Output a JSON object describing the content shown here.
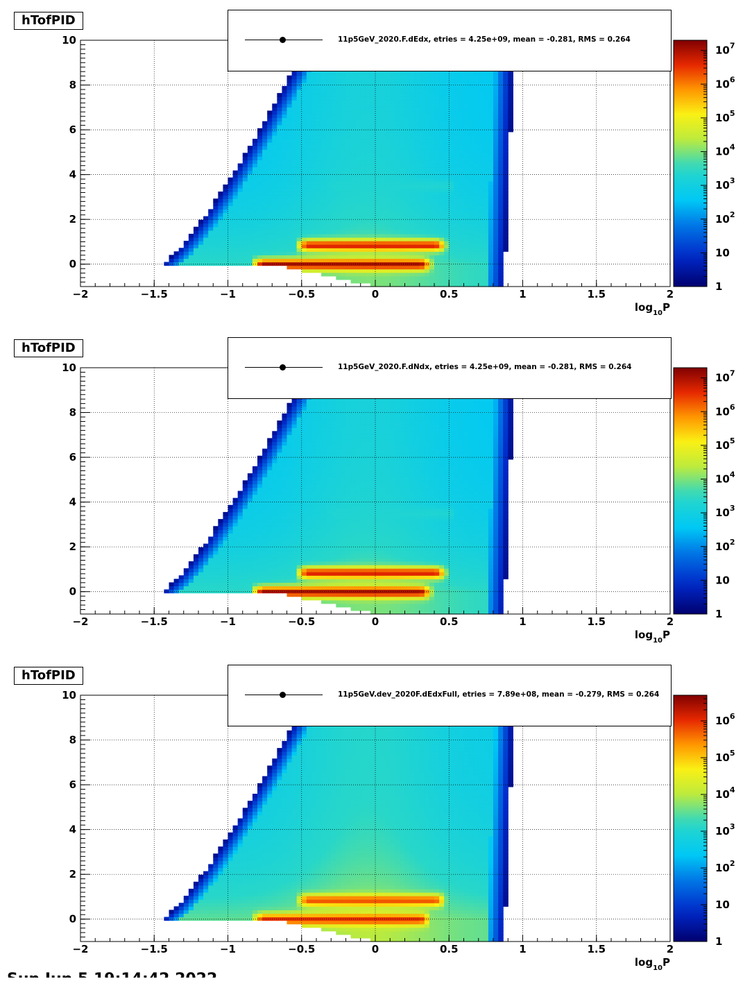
{
  "panels": [
    {
      "title": "hTofPID",
      "legend": "11p5GeV_2020.F.dEdx, etries =   4.25e+09, mean =  -0.281, RMS =   0.264",
      "z_labels": [
        {
          "base": "10",
          "exp": "7"
        },
        {
          "base": "10",
          "exp": "6"
        },
        {
          "base": "10",
          "exp": "5"
        },
        {
          "base": "10",
          "exp": "4"
        },
        {
          "base": "10",
          "exp": "3"
        },
        {
          "base": "10",
          "exp": "2"
        },
        {
          "base": "10",
          "exp": ""
        },
        {
          "base": "1",
          "exp": ""
        }
      ]
    },
    {
      "title": "hTofPID",
      "legend": "11p5GeV_2020.F.dNdx, etries =   4.25e+09, mean =  -0.281, RMS =   0.264",
      "z_labels": [
        {
          "base": "10",
          "exp": "7"
        },
        {
          "base": "10",
          "exp": "6"
        },
        {
          "base": "10",
          "exp": "5"
        },
        {
          "base": "10",
          "exp": "4"
        },
        {
          "base": "10",
          "exp": "3"
        },
        {
          "base": "10",
          "exp": "2"
        },
        {
          "base": "10",
          "exp": ""
        },
        {
          "base": "1",
          "exp": ""
        }
      ]
    },
    {
      "title": "hTofPID",
      "legend": "11p5GeV.dev_2020F.dEdxFull, etries =   7.89e+08, mean =  -0.279, RMS =   0.264",
      "z_labels": [
        {
          "base": "10",
          "exp": "6"
        },
        {
          "base": "10",
          "exp": "5"
        },
        {
          "base": "10",
          "exp": "4"
        },
        {
          "base": "10",
          "exp": "3"
        },
        {
          "base": "10",
          "exp": "2"
        },
        {
          "base": "10",
          "exp": ""
        },
        {
          "base": "1",
          "exp": ""
        }
      ]
    }
  ],
  "footer": "Sun Jun  5 19:14:42 2022",
  "chart_data": [
    {
      "type": "heatmap",
      "title": "hTofPID",
      "xlabel": "log10P",
      "ylabel": "",
      "xlim": [
        -2,
        2
      ],
      "ylim": [
        -1,
        10
      ],
      "x_ticks": [
        "-2",
        "-1.5",
        "-1",
        "-0.5",
        "0",
        "0.5",
        "1",
        "1.5",
        "2"
      ],
      "y_ticks": [
        "0",
        "2",
        "4",
        "6",
        "8",
        "10"
      ],
      "z_scale": "log",
      "zlim": [
        1,
        20000000
      ],
      "grid": true,
      "legend_position": "top-right",
      "series": [
        {
          "name": "11p5GeV_2020.F.dEdx",
          "entries": "4.25e+09",
          "mean": -0.281,
          "rms": 0.264
        }
      ],
      "bands": [
        {
          "y": 0.0,
          "x_range": [
            -0.75,
            0.3
          ],
          "level": 7
        },
        {
          "y": 0.85,
          "x_range": [
            -0.45,
            0.4
          ],
          "level": 6.7
        },
        {
          "y": 3.5,
          "x_range": [
            -0.3,
            0.5
          ],
          "level": 3.3
        }
      ]
    },
    {
      "type": "heatmap",
      "title": "hTofPID",
      "xlabel": "log10P",
      "ylabel": "",
      "xlim": [
        -2,
        2
      ],
      "ylim": [
        -1,
        10
      ],
      "x_ticks": [
        "-2",
        "-1.5",
        "-1",
        "-0.5",
        "0",
        "0.5",
        "1",
        "1.5",
        "2"
      ],
      "y_ticks": [
        "0",
        "2",
        "4",
        "6",
        "8",
        "10"
      ],
      "z_scale": "log",
      "zlim": [
        1,
        20000000
      ],
      "grid": true,
      "legend_position": "top-right",
      "series": [
        {
          "name": "11p5GeV_2020.F.dNdx",
          "entries": "4.25e+09",
          "mean": -0.281,
          "rms": 0.264
        }
      ],
      "bands": [
        {
          "y": 0.0,
          "x_range": [
            -0.75,
            0.3
          ],
          "level": 7
        },
        {
          "y": 0.85,
          "x_range": [
            -0.45,
            0.4
          ],
          "level": 6.7
        },
        {
          "y": 3.5,
          "x_range": [
            -0.3,
            0.5
          ],
          "level": 3.3
        }
      ]
    },
    {
      "type": "heatmap",
      "title": "hTofPID",
      "xlabel": "log10P",
      "ylabel": "",
      "xlim": [
        -2,
        2
      ],
      "ylim": [
        -1,
        10
      ],
      "x_ticks": [
        "-2",
        "-1.5",
        "-1",
        "-0.5",
        "0",
        "0.5",
        "1",
        "1.5",
        "2"
      ],
      "y_ticks": [
        "0",
        "2",
        "4",
        "6",
        "8",
        "10"
      ],
      "z_scale": "log",
      "zlim": [
        1,
        5000000
      ],
      "grid": true,
      "legend_position": "top-right",
      "series": [
        {
          "name": "11p5GeV.dev_2020F.dEdxFull",
          "entries": "7.89e+08",
          "mean": -0.279,
          "rms": 0.264
        }
      ],
      "bands": [
        {
          "y": 0.0,
          "x_range": [
            -0.75,
            0.3
          ],
          "level": 6
        },
        {
          "y": 0.85,
          "x_range": [
            -0.45,
            0.4
          ],
          "level": 5.8
        },
        {
          "y": 3.5,
          "x_range": [
            -0.3,
            0.5
          ],
          "level": 2.8
        }
      ]
    }
  ]
}
